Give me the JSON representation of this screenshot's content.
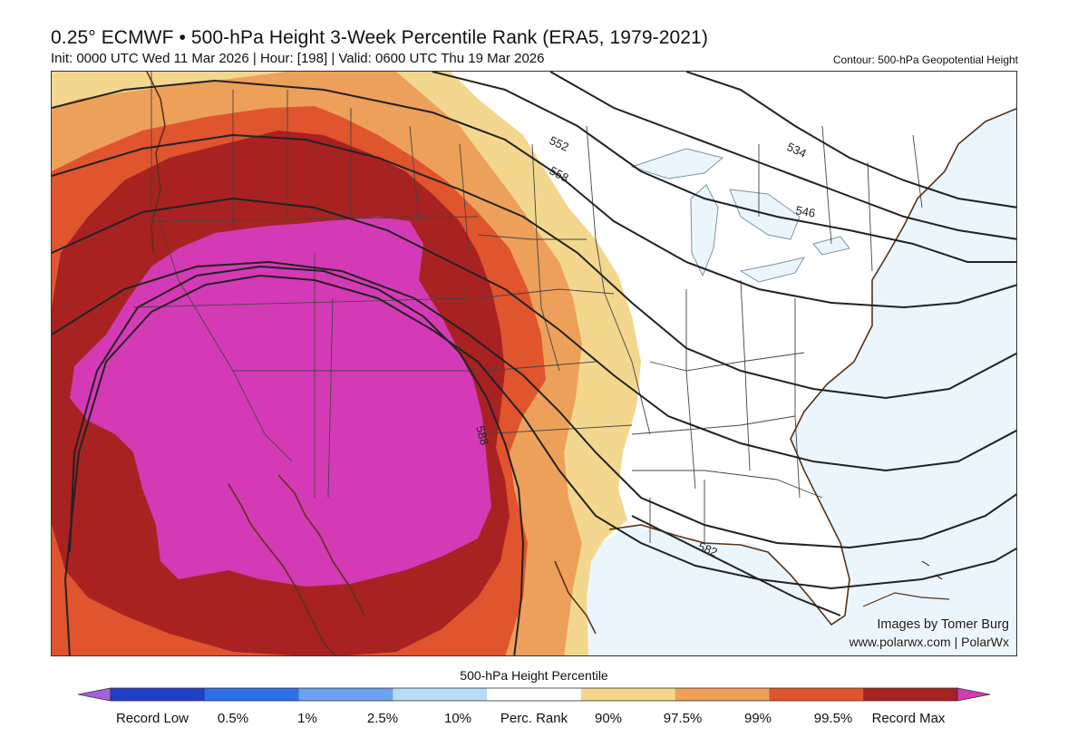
{
  "header": {
    "title": "0.25° ECMWF • 500-hPa Height 3-Week Percentile Rank (ERA5, 1979-2021)",
    "subtitle": "Init: 0000 UTC Wed 11 Mar 2026 | Hour: [198] | Valid: 0600 UTC Thu 19 Mar 2026",
    "contour_note": "Contour: 500-hPa Geopotential Height"
  },
  "contour_labels": [
    "552",
    "558",
    "534",
    "546",
    "588",
    "582"
  ],
  "credit": {
    "line1": "Images by Tomer Burg",
    "line2": "www.polarwx.com | PolarWx"
  },
  "colorbar": {
    "title": "500-hPa Height Percentile",
    "labels": [
      "Record Low",
      "0.5%",
      "1%",
      "2.5%",
      "10%",
      "Perc. Rank",
      "90%",
      "97.5%",
      "99%",
      "99.5%",
      "Record Max"
    ],
    "colors": [
      "#a55fe0",
      "#2340c8",
      "#2f6ee6",
      "#6ba3ef",
      "#b8dcf5",
      "#ffffff",
      "#f3d78e",
      "#eda05a",
      "#e0542e",
      "#a82222",
      "#d43ab6"
    ]
  },
  "colors": {
    "ocean": "#eaf6fc",
    "land": "#ffffff",
    "p90": "#f3d78e",
    "p975": "#eda05a",
    "p99": "#e0542e",
    "p995": "#a82222",
    "record_max": "#d43ab6",
    "coast": "#5a3218",
    "contour": "#222222"
  }
}
